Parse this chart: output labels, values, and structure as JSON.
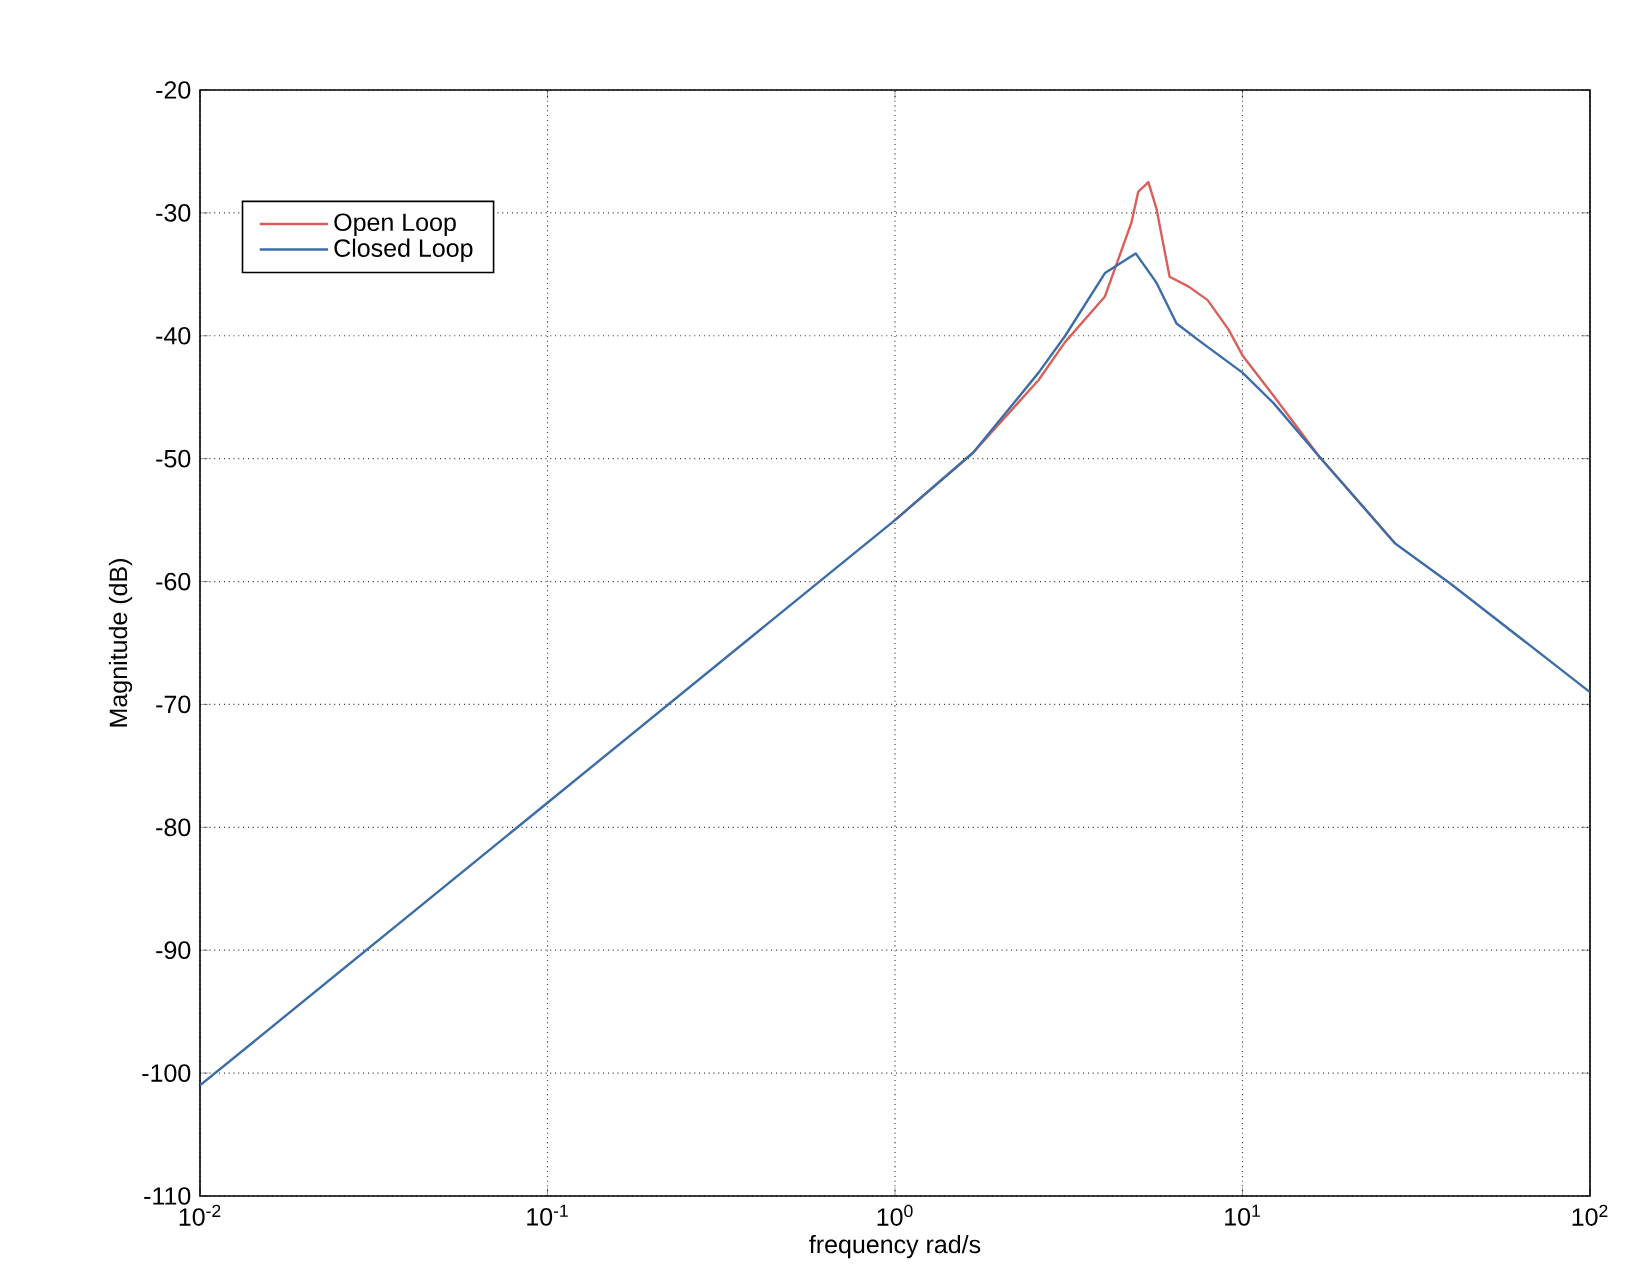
{
  "chart_data": {
    "type": "line",
    "xlabel": "frequency rad/s",
    "ylabel": "Magnitude (dB)",
    "log": "x",
    "xlim": [
      0.01,
      100
    ],
    "ylim": [
      -110,
      -20
    ],
    "xticks": [
      {
        "value": 0.01,
        "label": "10$^{-2}$"
      },
      {
        "value": 0.1,
        "label": "10$^{-1}$"
      },
      {
        "value": 1,
        "label": "10$^{0}$"
      },
      {
        "value": 10,
        "label": "10$^{1}$"
      },
      {
        "value": 100,
        "label": "10$^{2}$"
      }
    ],
    "yticks": [
      -110,
      -100,
      -90,
      -80,
      -70,
      -60,
      -50,
      -40,
      -30,
      -20
    ],
    "grid": true,
    "legend": "top left",
    "line_style": "solid",
    "marker": "none",
    "series": [
      {
        "name": "Open Loop",
        "color": "#d9605a",
        "x": [
          1,
          1.68,
          2.59,
          3.09,
          4.02,
          4.79,
          5.01,
          5.36,
          5.66,
          6.17,
          7.0,
          7.94,
          9.12,
          10,
          12.3,
          16.6,
          27.5
        ],
        "values": [
          -55,
          -49.5,
          -43.6,
          -40.5,
          -36.8,
          -30.8,
          -28.3,
          -27.5,
          -29.7,
          -35.2,
          -36,
          -37.1,
          -39.5,
          -41.6,
          -44.9,
          -49.8,
          -56.9
        ]
      },
      {
        "name": "Closed Loop",
        "color": "#3d6da8",
        "x": [
          0.01,
          0.1,
          1,
          1.68,
          2.59,
          3.09,
          4.02,
          4.93,
          5.66,
          6.46,
          7.67,
          10,
          12.3,
          16.6,
          27.5,
          39.8,
          100
        ],
        "values": [
          -101,
          -78,
          -55,
          -49.5,
          -43,
          -40,
          -34.9,
          -33.3,
          -35.7,
          -39,
          -40.6,
          -43,
          -45.5,
          -49.8,
          -56.9,
          -60.2,
          -69
        ]
      }
    ]
  }
}
